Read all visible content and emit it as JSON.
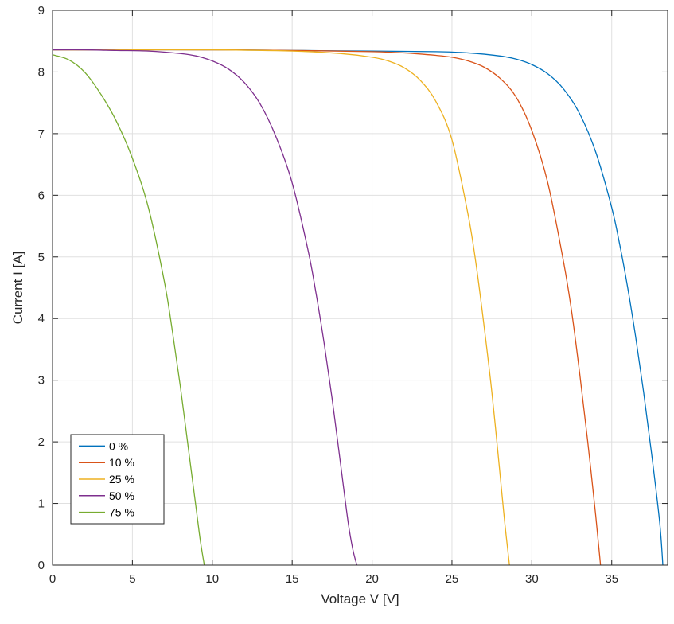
{
  "chart_data": {
    "type": "line",
    "title": "",
    "xlabel": "Voltage V [V]",
    "ylabel": "Current I [A]",
    "xlim": [
      0,
      38.5
    ],
    "ylim": [
      0,
      9
    ],
    "xticks": [
      0,
      5,
      10,
      15,
      20,
      25,
      30,
      35
    ],
    "yticks": [
      0,
      1,
      2,
      3,
      4,
      5,
      6,
      7,
      8,
      9
    ],
    "grid": true,
    "legend_position": "bottom-left",
    "series": [
      {
        "name": "0  %",
        "color": "#0072BD",
        "x": [
          0,
          5,
          10,
          15,
          20,
          24,
          26,
          28,
          29,
          30,
          31,
          32,
          33,
          34,
          35,
          35.5,
          36,
          36.5,
          37,
          37.5,
          38,
          38.2
        ],
        "y": [
          8.36,
          8.36,
          8.36,
          8.35,
          8.34,
          8.33,
          8.31,
          8.26,
          8.21,
          8.12,
          7.97,
          7.72,
          7.32,
          6.7,
          5.8,
          5.2,
          4.5,
          3.7,
          2.8,
          1.8,
          0.7,
          0
        ]
      },
      {
        "name": "10  %",
        "color": "#D95319",
        "x": [
          0,
          5,
          10,
          15,
          20,
          22,
          24,
          25,
          26,
          27,
          28,
          29,
          30,
          31,
          32,
          32.5,
          33,
          33.5,
          34,
          34.3
        ],
        "y": [
          8.36,
          8.36,
          8.36,
          8.35,
          8.33,
          8.31,
          8.27,
          8.24,
          8.18,
          8.08,
          7.9,
          7.6,
          7.05,
          6.2,
          4.9,
          4.1,
          3.1,
          2.0,
          0.8,
          0
        ]
      },
      {
        "name": "25  %",
        "color": "#EDB120",
        "x": [
          0,
          5,
          10,
          15,
          18,
          20,
          21,
          22,
          23,
          24,
          25,
          26,
          26.5,
          27,
          27.5,
          28,
          28.3,
          28.6
        ],
        "y": [
          8.36,
          8.36,
          8.36,
          8.34,
          8.3,
          8.24,
          8.18,
          8.07,
          7.87,
          7.52,
          6.9,
          5.7,
          4.9,
          3.9,
          2.8,
          1.5,
          0.7,
          0
        ]
      },
      {
        "name": "50  %",
        "color": "#7E2F8E",
        "x": [
          0,
          2,
          4,
          6,
          8,
          9,
          10,
          11,
          12,
          13,
          14,
          15,
          16,
          16.5,
          17,
          17.5,
          18,
          18.5,
          18.8,
          19.05
        ],
        "y": [
          8.36,
          8.36,
          8.35,
          8.34,
          8.3,
          8.26,
          8.18,
          8.05,
          7.83,
          7.48,
          6.94,
          6.2,
          5.1,
          4.4,
          3.6,
          2.7,
          1.7,
          0.7,
          0.25,
          0
        ]
      },
      {
        "name": "75  %",
        "color": "#77AC30",
        "x": [
          0,
          1,
          2,
          3,
          4,
          5,
          6,
          7,
          7.5,
          8,
          8.5,
          9,
          9.25,
          9.5
        ],
        "y": [
          8.28,
          8.2,
          8.0,
          7.65,
          7.2,
          6.6,
          5.8,
          4.6,
          3.8,
          2.9,
          1.9,
          0.9,
          0.4,
          0
        ]
      }
    ]
  }
}
